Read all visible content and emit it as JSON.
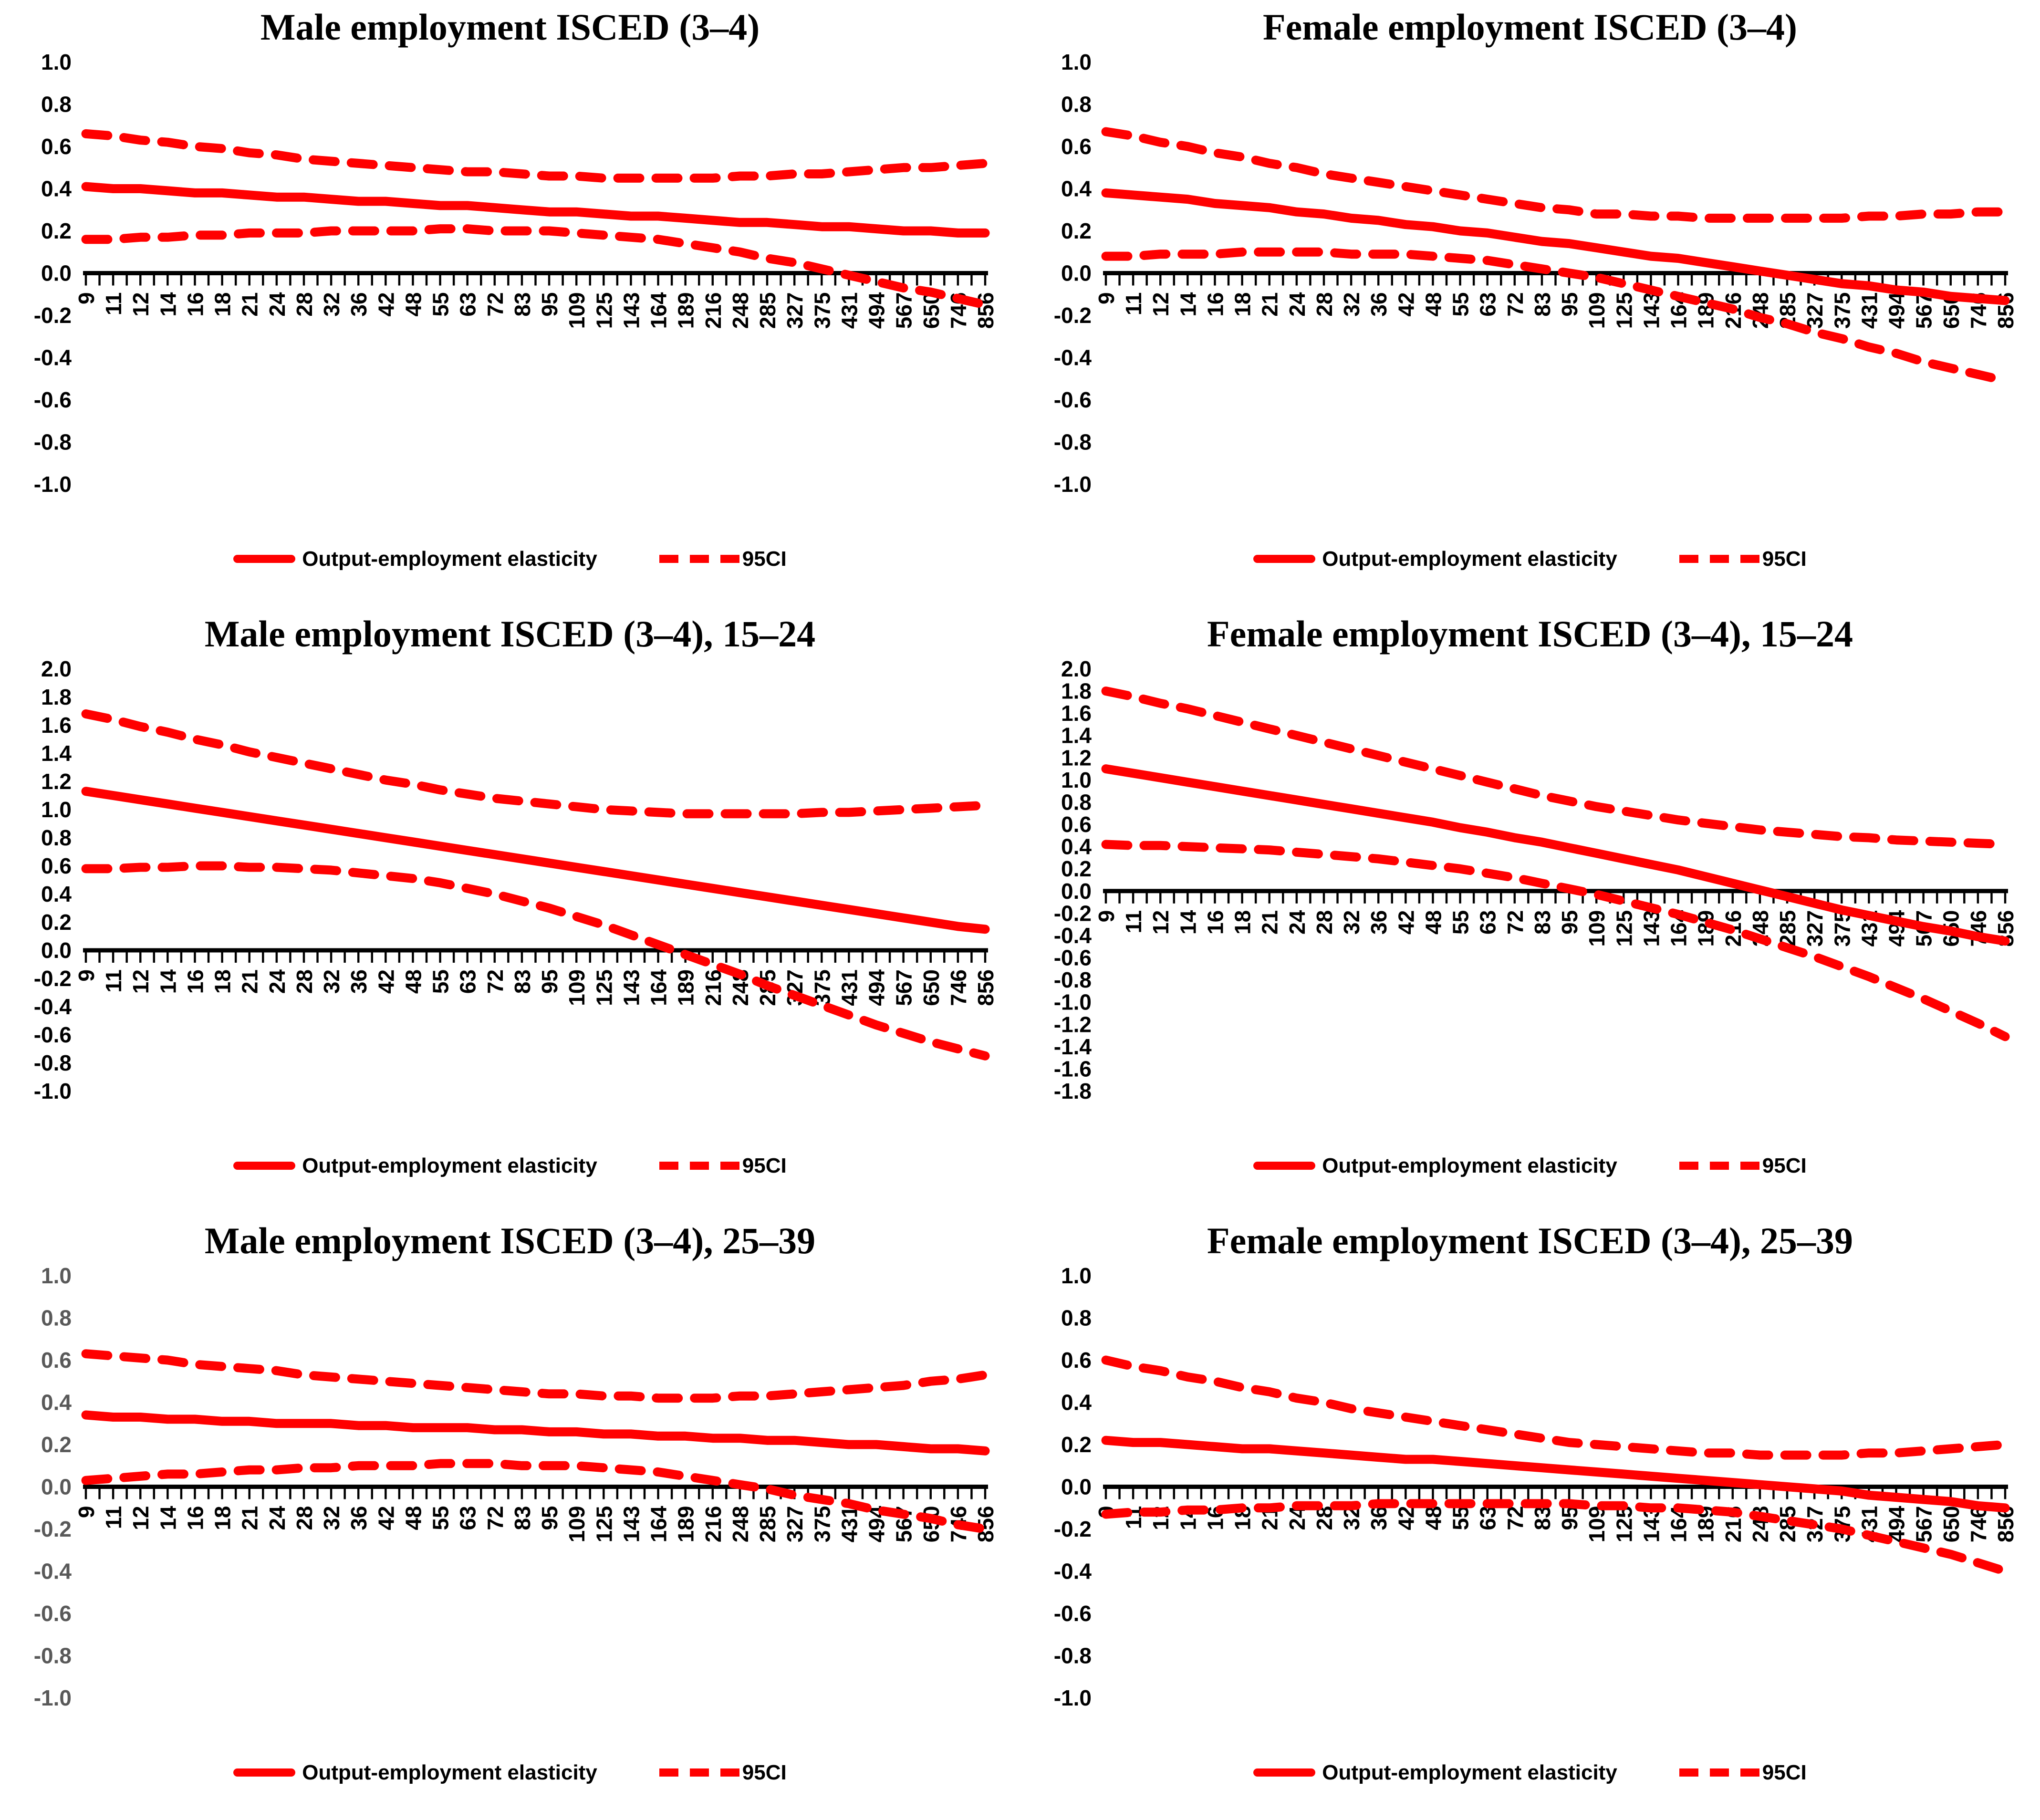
{
  "legend_labels": {
    "solid": "Output-employment elasticity",
    "dashed": "95CI"
  },
  "colors": {
    "line": "#FF0000",
    "axis": "#000000",
    "label_default": "#000000",
    "label_grey": "#595959"
  },
  "chart_data": [
    {
      "type": "line",
      "title": "Male employment ISCED (3–4)",
      "xlabel": "",
      "ylabel": "",
      "ylim": [
        -1.0,
        1.0
      ],
      "ytick_step": 0.2,
      "grid": false,
      "legend_position": "bottom",
      "line_color": "#FF0000",
      "ylabel_color": "#000000",
      "legend": {
        "solid": "Output-employment elasticity",
        "dashed": "95CI"
      },
      "categories": [
        9,
        11,
        12,
        14,
        16,
        18,
        21,
        24,
        28,
        32,
        36,
        42,
        48,
        55,
        63,
        72,
        83,
        95,
        109,
        125,
        143,
        164,
        189,
        216,
        248,
        285,
        327,
        375,
        431,
        494,
        567,
        650,
        746,
        856
      ],
      "series": [
        {
          "name": "Output-employment elasticity",
          "style": "solid",
          "values": [
            0.41,
            0.4,
            0.4,
            0.39,
            0.38,
            0.38,
            0.37,
            0.36,
            0.36,
            0.35,
            0.34,
            0.34,
            0.33,
            0.32,
            0.32,
            0.31,
            0.3,
            0.29,
            0.29,
            0.28,
            0.27,
            0.27,
            0.26,
            0.25,
            0.24,
            0.24,
            0.23,
            0.22,
            0.22,
            0.21,
            0.2,
            0.2,
            0.19,
            0.19
          ]
        },
        {
          "name": "95CI upper",
          "style": "dashed",
          "values": [
            0.66,
            0.65,
            0.63,
            0.62,
            0.6,
            0.59,
            0.57,
            0.56,
            0.54,
            0.53,
            0.52,
            0.51,
            0.5,
            0.49,
            0.48,
            0.48,
            0.47,
            0.46,
            0.46,
            0.45,
            0.45,
            0.45,
            0.45,
            0.45,
            0.46,
            0.46,
            0.47,
            0.47,
            0.48,
            0.49,
            0.5,
            0.5,
            0.51,
            0.52
          ]
        },
        {
          "name": "95CI lower",
          "style": "dashed",
          "values": [
            0.16,
            0.16,
            0.17,
            0.17,
            0.18,
            0.18,
            0.19,
            0.19,
            0.19,
            0.2,
            0.2,
            0.2,
            0.2,
            0.21,
            0.21,
            0.2,
            0.2,
            0.2,
            0.19,
            0.18,
            0.17,
            0.16,
            0.14,
            0.12,
            0.1,
            0.07,
            0.05,
            0.02,
            -0.01,
            -0.04,
            -0.07,
            -0.09,
            -0.12,
            -0.15
          ]
        }
      ]
    },
    {
      "type": "line",
      "title": "Female employment ISCED (3–4)",
      "xlabel": "",
      "ylabel": "",
      "ylim": [
        -1.0,
        1.0
      ],
      "ytick_step": 0.2,
      "grid": false,
      "legend_position": "bottom",
      "line_color": "#FF0000",
      "ylabel_color": "#000000",
      "legend": {
        "solid": "Output-employment elasticity",
        "dashed": "95CI"
      },
      "categories": [
        9,
        11,
        12,
        14,
        16,
        18,
        21,
        24,
        28,
        32,
        36,
        42,
        48,
        55,
        63,
        72,
        83,
        95,
        109,
        125,
        143,
        164,
        189,
        216,
        248,
        285,
        327,
        375,
        431,
        494,
        567,
        650,
        746,
        856
      ],
      "series": [
        {
          "name": "Output-employment elasticity",
          "style": "solid",
          "values": [
            0.38,
            0.37,
            0.36,
            0.35,
            0.33,
            0.32,
            0.31,
            0.29,
            0.28,
            0.26,
            0.25,
            0.23,
            0.22,
            0.2,
            0.19,
            0.17,
            0.15,
            0.14,
            0.12,
            0.1,
            0.08,
            0.07,
            0.05,
            0.03,
            0.01,
            -0.01,
            -0.03,
            -0.05,
            -0.06,
            -0.08,
            -0.09,
            -0.11,
            -0.12,
            -0.13
          ]
        },
        {
          "name": "95CI upper",
          "style": "dashed",
          "values": [
            0.67,
            0.65,
            0.62,
            0.6,
            0.57,
            0.55,
            0.52,
            0.5,
            0.47,
            0.45,
            0.43,
            0.41,
            0.39,
            0.37,
            0.35,
            0.33,
            0.31,
            0.3,
            0.28,
            0.28,
            0.27,
            0.27,
            0.26,
            0.26,
            0.26,
            0.26,
            0.26,
            0.26,
            0.27,
            0.27,
            0.28,
            0.28,
            0.29,
            0.29
          ]
        },
        {
          "name": "95CI lower",
          "style": "dashed",
          "values": [
            0.08,
            0.08,
            0.09,
            0.09,
            0.09,
            0.1,
            0.1,
            0.1,
            0.1,
            0.09,
            0.09,
            0.09,
            0.08,
            0.07,
            0.06,
            0.04,
            0.02,
            0.0,
            -0.02,
            -0.05,
            -0.08,
            -0.11,
            -0.14,
            -0.17,
            -0.21,
            -0.24,
            -0.28,
            -0.31,
            -0.35,
            -0.38,
            -0.42,
            -0.45,
            -0.48,
            -0.51
          ]
        }
      ]
    },
    {
      "type": "line",
      "title": "Male employment ISCED (3–4), 15–24",
      "xlabel": "",
      "ylabel": "",
      "ylim": [
        -1.0,
        2.0
      ],
      "ytick_step": 0.2,
      "grid": false,
      "legend_position": "bottom",
      "line_color": "#FF0000",
      "ylabel_color": "#000000",
      "legend": {
        "solid": "Output-employment elasticity",
        "dashed": "95CI"
      },
      "categories": [
        9,
        11,
        12,
        14,
        16,
        18,
        21,
        24,
        28,
        32,
        36,
        42,
        48,
        55,
        63,
        72,
        83,
        95,
        109,
        125,
        143,
        164,
        189,
        216,
        248,
        285,
        327,
        375,
        431,
        494,
        567,
        650,
        746,
        856
      ],
      "series": [
        {
          "name": "Output-employment elasticity",
          "style": "solid",
          "values": [
            1.13,
            1.1,
            1.07,
            1.04,
            1.01,
            0.98,
            0.95,
            0.92,
            0.89,
            0.86,
            0.83,
            0.8,
            0.77,
            0.74,
            0.71,
            0.68,
            0.65,
            0.62,
            0.59,
            0.56,
            0.53,
            0.5,
            0.47,
            0.44,
            0.41,
            0.38,
            0.35,
            0.32,
            0.29,
            0.26,
            0.23,
            0.2,
            0.17,
            0.15
          ]
        },
        {
          "name": "95CI upper",
          "style": "dashed",
          "values": [
            1.68,
            1.64,
            1.59,
            1.55,
            1.5,
            1.46,
            1.41,
            1.37,
            1.33,
            1.29,
            1.25,
            1.21,
            1.18,
            1.14,
            1.11,
            1.08,
            1.06,
            1.04,
            1.02,
            1.0,
            0.99,
            0.98,
            0.97,
            0.97,
            0.97,
            0.97,
            0.97,
            0.98,
            0.98,
            0.99,
            1.0,
            1.01,
            1.02,
            1.03
          ]
        },
        {
          "name": "95CI lower",
          "style": "dashed",
          "values": [
            0.58,
            0.58,
            0.59,
            0.59,
            0.6,
            0.6,
            0.59,
            0.59,
            0.58,
            0.57,
            0.55,
            0.53,
            0.51,
            0.48,
            0.44,
            0.4,
            0.35,
            0.3,
            0.24,
            0.18,
            0.11,
            0.04,
            -0.03,
            -0.1,
            -0.17,
            -0.25,
            -0.32,
            -0.39,
            -0.46,
            -0.53,
            -0.59,
            -0.65,
            -0.7,
            -0.75
          ]
        }
      ]
    },
    {
      "type": "line",
      "title": "Female employment ISCED (3–4), 15–24",
      "xlabel": "",
      "ylabel": "",
      "ylim": [
        -1.8,
        2.0
      ],
      "ytick_step": 0.2,
      "grid": false,
      "legend_position": "bottom",
      "line_color": "#FF0000",
      "ylabel_color": "#000000",
      "legend": {
        "solid": "Output-employment elasticity",
        "dashed": "95CI"
      },
      "categories": [
        9,
        11,
        12,
        14,
        16,
        18,
        21,
        24,
        28,
        32,
        36,
        42,
        48,
        55,
        63,
        72,
        83,
        95,
        109,
        125,
        143,
        164,
        189,
        216,
        248,
        285,
        327,
        375,
        431,
        494,
        567,
        650,
        746,
        856
      ],
      "series": [
        {
          "name": "Output-employment elasticity",
          "style": "solid",
          "values": [
            1.1,
            1.06,
            1.02,
            0.98,
            0.94,
            0.9,
            0.86,
            0.82,
            0.78,
            0.74,
            0.7,
            0.66,
            0.62,
            0.57,
            0.53,
            0.48,
            0.44,
            0.39,
            0.34,
            0.29,
            0.24,
            0.19,
            0.13,
            0.07,
            0.01,
            -0.05,
            -0.11,
            -0.17,
            -0.22,
            -0.27,
            -0.32,
            -0.36,
            -0.41,
            -0.45
          ]
        },
        {
          "name": "95CI upper",
          "style": "dashed",
          "values": [
            1.8,
            1.75,
            1.69,
            1.64,
            1.58,
            1.52,
            1.46,
            1.4,
            1.34,
            1.28,
            1.22,
            1.16,
            1.1,
            1.04,
            0.98,
            0.92,
            0.86,
            0.81,
            0.76,
            0.72,
            0.68,
            0.64,
            0.61,
            0.58,
            0.55,
            0.53,
            0.51,
            0.49,
            0.48,
            0.46,
            0.45,
            0.44,
            0.43,
            0.42
          ]
        },
        {
          "name": "95CI lower",
          "style": "dashed",
          "values": [
            0.42,
            0.41,
            0.41,
            0.4,
            0.39,
            0.38,
            0.37,
            0.35,
            0.33,
            0.31,
            0.29,
            0.26,
            0.23,
            0.2,
            0.16,
            0.12,
            0.07,
            0.02,
            -0.03,
            -0.09,
            -0.15,
            -0.21,
            -0.28,
            -0.35,
            -0.43,
            -0.51,
            -0.59,
            -0.68,
            -0.77,
            -0.87,
            -0.97,
            -1.08,
            -1.19,
            -1.31
          ]
        }
      ]
    },
    {
      "type": "line",
      "title": "Male employment ISCED (3–4), 25–39",
      "xlabel": "",
      "ylabel": "",
      "ylim": [
        -1.0,
        1.0
      ],
      "ytick_step": 0.2,
      "grid": false,
      "legend_position": "bottom",
      "line_color": "#FF0000",
      "ylabel_color": "#595959",
      "legend": {
        "solid": "Output-employment elasticity",
        "dashed": "95CI"
      },
      "categories": [
        9,
        11,
        12,
        14,
        16,
        18,
        21,
        24,
        28,
        32,
        36,
        42,
        48,
        55,
        63,
        72,
        83,
        95,
        109,
        125,
        143,
        164,
        189,
        216,
        248,
        285,
        327,
        375,
        431,
        494,
        567,
        650,
        746,
        856
      ],
      "series": [
        {
          "name": "Output-employment elasticity",
          "style": "solid",
          "values": [
            0.34,
            0.33,
            0.33,
            0.32,
            0.32,
            0.31,
            0.31,
            0.3,
            0.3,
            0.3,
            0.29,
            0.29,
            0.28,
            0.28,
            0.28,
            0.27,
            0.27,
            0.26,
            0.26,
            0.25,
            0.25,
            0.24,
            0.24,
            0.23,
            0.23,
            0.22,
            0.22,
            0.21,
            0.2,
            0.2,
            0.19,
            0.18,
            0.18,
            0.17
          ]
        },
        {
          "name": "95CI upper",
          "style": "dashed",
          "values": [
            0.63,
            0.62,
            0.61,
            0.6,
            0.58,
            0.57,
            0.56,
            0.55,
            0.53,
            0.52,
            0.51,
            0.5,
            0.49,
            0.48,
            0.47,
            0.46,
            0.45,
            0.44,
            0.44,
            0.43,
            0.43,
            0.42,
            0.42,
            0.42,
            0.43,
            0.43,
            0.44,
            0.45,
            0.46,
            0.47,
            0.48,
            0.5,
            0.51,
            0.53
          ]
        },
        {
          "name": "95CI lower",
          "style": "dashed",
          "values": [
            0.03,
            0.04,
            0.05,
            0.06,
            0.06,
            0.07,
            0.08,
            0.08,
            0.09,
            0.09,
            0.1,
            0.1,
            0.1,
            0.11,
            0.11,
            0.11,
            0.1,
            0.1,
            0.1,
            0.09,
            0.08,
            0.07,
            0.05,
            0.03,
            0.01,
            -0.01,
            -0.04,
            -0.06,
            -0.08,
            -0.11,
            -0.13,
            -0.15,
            -0.18,
            -0.2
          ]
        }
      ]
    },
    {
      "type": "line",
      "title": "Female employment ISCED (3–4), 25–39",
      "xlabel": "",
      "ylabel": "",
      "ylim": [
        -1.0,
        1.0
      ],
      "ytick_step": 0.2,
      "grid": false,
      "legend_position": "bottom",
      "line_color": "#FF0000",
      "ylabel_color": "#000000",
      "legend": {
        "solid": "Output-employment elasticity",
        "dashed": "95CI"
      },
      "categories": [
        9,
        11,
        12,
        14,
        16,
        18,
        21,
        24,
        28,
        32,
        36,
        42,
        48,
        55,
        63,
        72,
        83,
        95,
        109,
        125,
        143,
        164,
        189,
        216,
        248,
        285,
        327,
        375,
        431,
        494,
        567,
        650,
        746,
        856
      ],
      "series": [
        {
          "name": "Output-employment elasticity",
          "style": "solid",
          "values": [
            0.22,
            0.21,
            0.21,
            0.2,
            0.19,
            0.18,
            0.18,
            0.17,
            0.16,
            0.15,
            0.14,
            0.13,
            0.13,
            0.12,
            0.11,
            0.1,
            0.09,
            0.08,
            0.07,
            0.06,
            0.05,
            0.04,
            0.03,
            0.02,
            0.01,
            0.0,
            -0.01,
            -0.02,
            -0.04,
            -0.05,
            -0.06,
            -0.07,
            -0.09,
            -0.1
          ]
        },
        {
          "name": "95CI upper",
          "style": "dashed",
          "values": [
            0.6,
            0.57,
            0.55,
            0.52,
            0.5,
            0.47,
            0.45,
            0.42,
            0.4,
            0.37,
            0.35,
            0.33,
            0.31,
            0.29,
            0.27,
            0.25,
            0.23,
            0.21,
            0.2,
            0.19,
            0.18,
            0.17,
            0.16,
            0.16,
            0.15,
            0.15,
            0.15,
            0.15,
            0.16,
            0.16,
            0.17,
            0.18,
            0.19,
            0.2
          ]
        },
        {
          "name": "95CI lower",
          "style": "dashed",
          "values": [
            -0.13,
            -0.12,
            -0.12,
            -0.11,
            -0.11,
            -0.1,
            -0.1,
            -0.09,
            -0.09,
            -0.09,
            -0.08,
            -0.08,
            -0.08,
            -0.08,
            -0.08,
            -0.08,
            -0.08,
            -0.08,
            -0.09,
            -0.09,
            -0.1,
            -0.1,
            -0.11,
            -0.12,
            -0.14,
            -0.16,
            -0.18,
            -0.2,
            -0.23,
            -0.26,
            -0.29,
            -0.32,
            -0.36,
            -0.4
          ]
        }
      ]
    }
  ]
}
